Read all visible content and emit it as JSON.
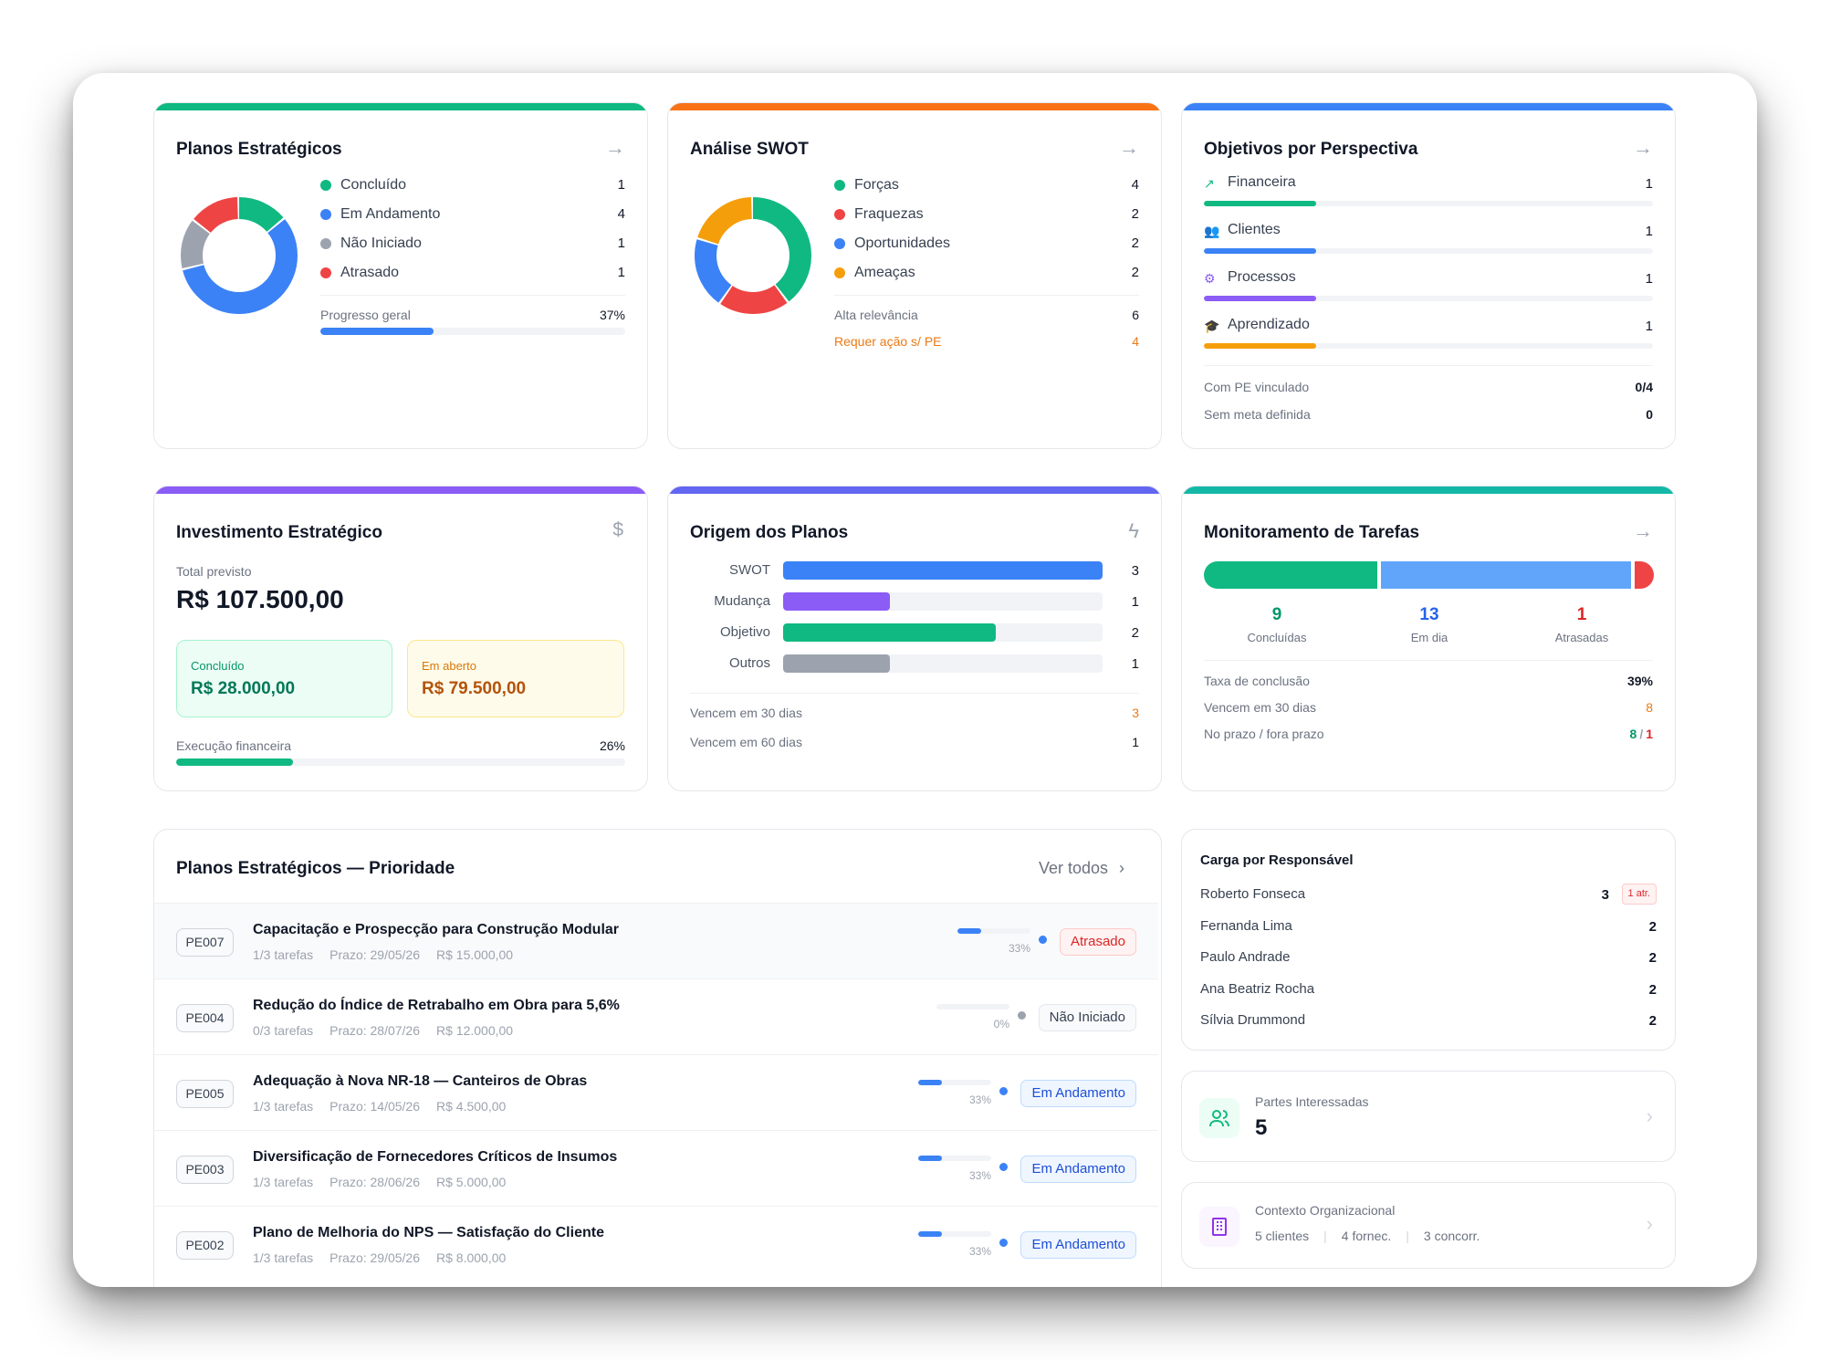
{
  "planos": {
    "title": "Planos Estratégicos",
    "legend": [
      {
        "label": "Concluído",
        "value": 1,
        "color": "#10b981"
      },
      {
        "label": "Em Andamento",
        "value": 4,
        "color": "#3b82f6"
      },
      {
        "label": "Não Iniciado",
        "value": 1,
        "color": "#9ca3af"
      },
      {
        "label": "Atrasado",
        "value": 1,
        "color": "#ef4444"
      }
    ],
    "progress_label": "Progresso geral",
    "progress_text": "37%",
    "progress": 0.37
  },
  "swot": {
    "title": "Análise SWOT",
    "legend": [
      {
        "label": "Forças",
        "value": 4,
        "color": "#10b981"
      },
      {
        "label": "Fraquezas",
        "value": 2,
        "color": "#ef4444"
      },
      {
        "label": "Oportunidades",
        "value": 2,
        "color": "#3b82f6"
      },
      {
        "label": "Ameaças",
        "value": 2,
        "color": "#f59e0b"
      }
    ],
    "alta_label": "Alta relevância",
    "alta_value": "6",
    "acao_label": "Requer ação s/ PE",
    "acao_value": "4"
  },
  "objetivos": {
    "title": "Objetivos por Perspectiva",
    "items": [
      {
        "label": "Financeira",
        "value": 1,
        "color": "#10b981",
        "icon": "trending-up-icon",
        "fill": 0.25
      },
      {
        "label": "Clientes",
        "value": 1,
        "color": "#3b82f6",
        "icon": "users-icon",
        "fill": 0.25
      },
      {
        "label": "Processos",
        "value": 1,
        "color": "#8b5cf6",
        "icon": "cog-icon",
        "fill": 0.25
      },
      {
        "label": "Aprendizado",
        "value": 1,
        "color": "#f59e0b",
        "icon": "graduation-cap-icon",
        "fill": 0.25
      }
    ],
    "pe_label": "Com PE vinculado",
    "pe_value": "0/4",
    "meta_label": "Sem meta definida",
    "meta_value": "0"
  },
  "investimento": {
    "title": "Investimento Estratégico",
    "total_label": "Total previsto",
    "total": "R$ 107.500,00",
    "concluido_label": "Concluído",
    "concluido": "R$ 28.000,00",
    "aberto_label": "Em aberto",
    "aberto": "R$ 79.500,00",
    "exec_label": "Execução financeira",
    "exec_text": "26%",
    "exec": 0.26
  },
  "origem": {
    "title": "Origem dos Planos",
    "vence30_label": "Vencem em 30 dias",
    "vence30": "3",
    "vence60_label": "Vencem em 60 dias",
    "vence60": "1"
  },
  "chart_data": {
    "type": "bar",
    "categories": [
      "SWOT",
      "Mudança",
      "Objetivo",
      "Outros"
    ],
    "values": [
      3,
      1,
      2,
      1
    ],
    "colors": [
      "#3b82f6",
      "#8b5cf6",
      "#10b981",
      "#9ca3af"
    ],
    "title": "Origem dos Planos",
    "xlim": [
      0,
      3
    ]
  },
  "tarefas": {
    "title": "Monitoramento de Tarefas",
    "segments": [
      {
        "value": 9,
        "label": "Concluídas",
        "color": "#10b981",
        "text_color": "#059669"
      },
      {
        "value": 13,
        "label": "Em dia",
        "color": "#60a5fa",
        "text_color": "#2563eb"
      },
      {
        "value": 1,
        "label": "Atrasadas",
        "color": "#ef4444",
        "text_color": "#dc2626"
      }
    ],
    "taxa_label": "Taxa de conclusão",
    "taxa": "39%",
    "vence_label": "Vencem em 30 dias",
    "vence": "8",
    "prazo_label": "No prazo / fora prazo",
    "prazo_ok": "8",
    "prazo_sep": "/",
    "prazo_fora": "1"
  },
  "prioridade": {
    "title": "Planos Estratégicos — Prioridade",
    "ver_todos": "Ver todos",
    "rows": [
      {
        "code": "PE007",
        "title": "Capacitação e Prospecção para Construção Modular",
        "tarefas": "1/3 tarefas",
        "prazo": "Prazo: 29/05/26",
        "valor": "R$ 15.000,00",
        "pct_text": "33%",
        "pct": 0.33,
        "status": "Atrasado",
        "status_color": "#dc2626",
        "status_bg": "#fef2f2",
        "status_border": "#fecaca",
        "dot": "#3b82f6"
      },
      {
        "code": "PE004",
        "title": "Redução do Índice de Retrabalho em Obra para 5,6%",
        "tarefas": "0/3 tarefas",
        "prazo": "Prazo: 28/07/26",
        "valor": "R$ 12.000,00",
        "pct_text": "0%",
        "pct": 0,
        "status": "Não Iniciado",
        "status_color": "#374151",
        "status_bg": "#f9fafb",
        "status_border": "#e5e7eb",
        "dot": "#9ca3af"
      },
      {
        "code": "PE005",
        "title": "Adequação à Nova NR-18 — Canteiros de Obras",
        "tarefas": "1/3 tarefas",
        "prazo": "Prazo: 14/05/26",
        "valor": "R$ 4.500,00",
        "pct_text": "33%",
        "pct": 0.33,
        "status": "Em Andamento",
        "status_color": "#1d4ed8",
        "status_bg": "#eff6ff",
        "status_border": "#bfdbfe",
        "dot": "#3b82f6"
      },
      {
        "code": "PE003",
        "title": "Diversificação de Fornecedores Críticos de Insumos",
        "tarefas": "1/3 tarefas",
        "prazo": "Prazo: 28/06/26",
        "valor": "R$ 5.000,00",
        "pct_text": "33%",
        "pct": 0.33,
        "status": "Em Andamento",
        "status_color": "#1d4ed8",
        "status_bg": "#eff6ff",
        "status_border": "#bfdbfe",
        "dot": "#3b82f6"
      },
      {
        "code": "PE002",
        "title": "Plano de Melhoria do NPS — Satisfação do Cliente",
        "tarefas": "1/3 tarefas",
        "prazo": "Prazo: 29/05/26",
        "valor": "R$ 8.000,00",
        "pct_text": "33%",
        "pct": 0.33,
        "status": "Em Andamento",
        "status_color": "#1d4ed8",
        "status_bg": "#eff6ff",
        "status_border": "#bfdbfe",
        "dot": "#3b82f6"
      }
    ]
  },
  "carga": {
    "title": "Carga por Responsável",
    "rows": [
      {
        "name": "Roberto Fonseca",
        "value": "3",
        "badge": "1 atr."
      },
      {
        "name": "Fernanda Lima",
        "value": "2"
      },
      {
        "name": "Paulo Andrade",
        "value": "2"
      },
      {
        "name": "Ana Beatriz Rocha",
        "value": "2"
      },
      {
        "name": "Sílvia Drummond",
        "value": "2"
      }
    ]
  },
  "partes": {
    "label": "Partes Interessadas",
    "value": "5"
  },
  "contexto": {
    "label": "Contexto Organizacional",
    "clientes": "5 clientes",
    "fornec": "4 fornec.",
    "concorr": "3 concorr."
  }
}
